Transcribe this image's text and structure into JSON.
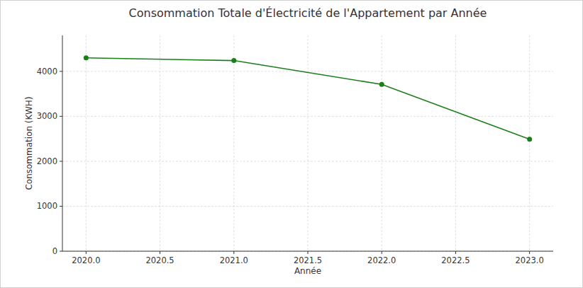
{
  "chart_data": {
    "type": "line",
    "title": "Consommation Totale d'Électricité de l'Appartement par Année",
    "x_label": "Année",
    "y_label": "Consommation (KWH)",
    "x": [
      2020,
      2021,
      2022,
      2023
    ],
    "values": [
      4300,
      4240,
      3710,
      2490
    ],
    "color": "#1a7f1a",
    "marker": "o",
    "line_style": "solid",
    "xlim": [
      2019.84,
      2023.16
    ],
    "ylim": [
      0,
      4800
    ],
    "xticks": [
      {
        "value": 2020,
        "label": "2020.0"
      },
      {
        "value": 2020.5,
        "label": "2020.5"
      },
      {
        "value": 2021,
        "label": "2021.0"
      },
      {
        "value": 2021.5,
        "label": "2021.5"
      },
      {
        "value": 2022,
        "label": "2022.0"
      },
      {
        "value": 2022.5,
        "label": "2022.5"
      },
      {
        "value": 2023,
        "label": "2023.0"
      }
    ],
    "yticks": [
      0,
      1000,
      2000,
      3000,
      4000
    ],
    "grid": true
  }
}
